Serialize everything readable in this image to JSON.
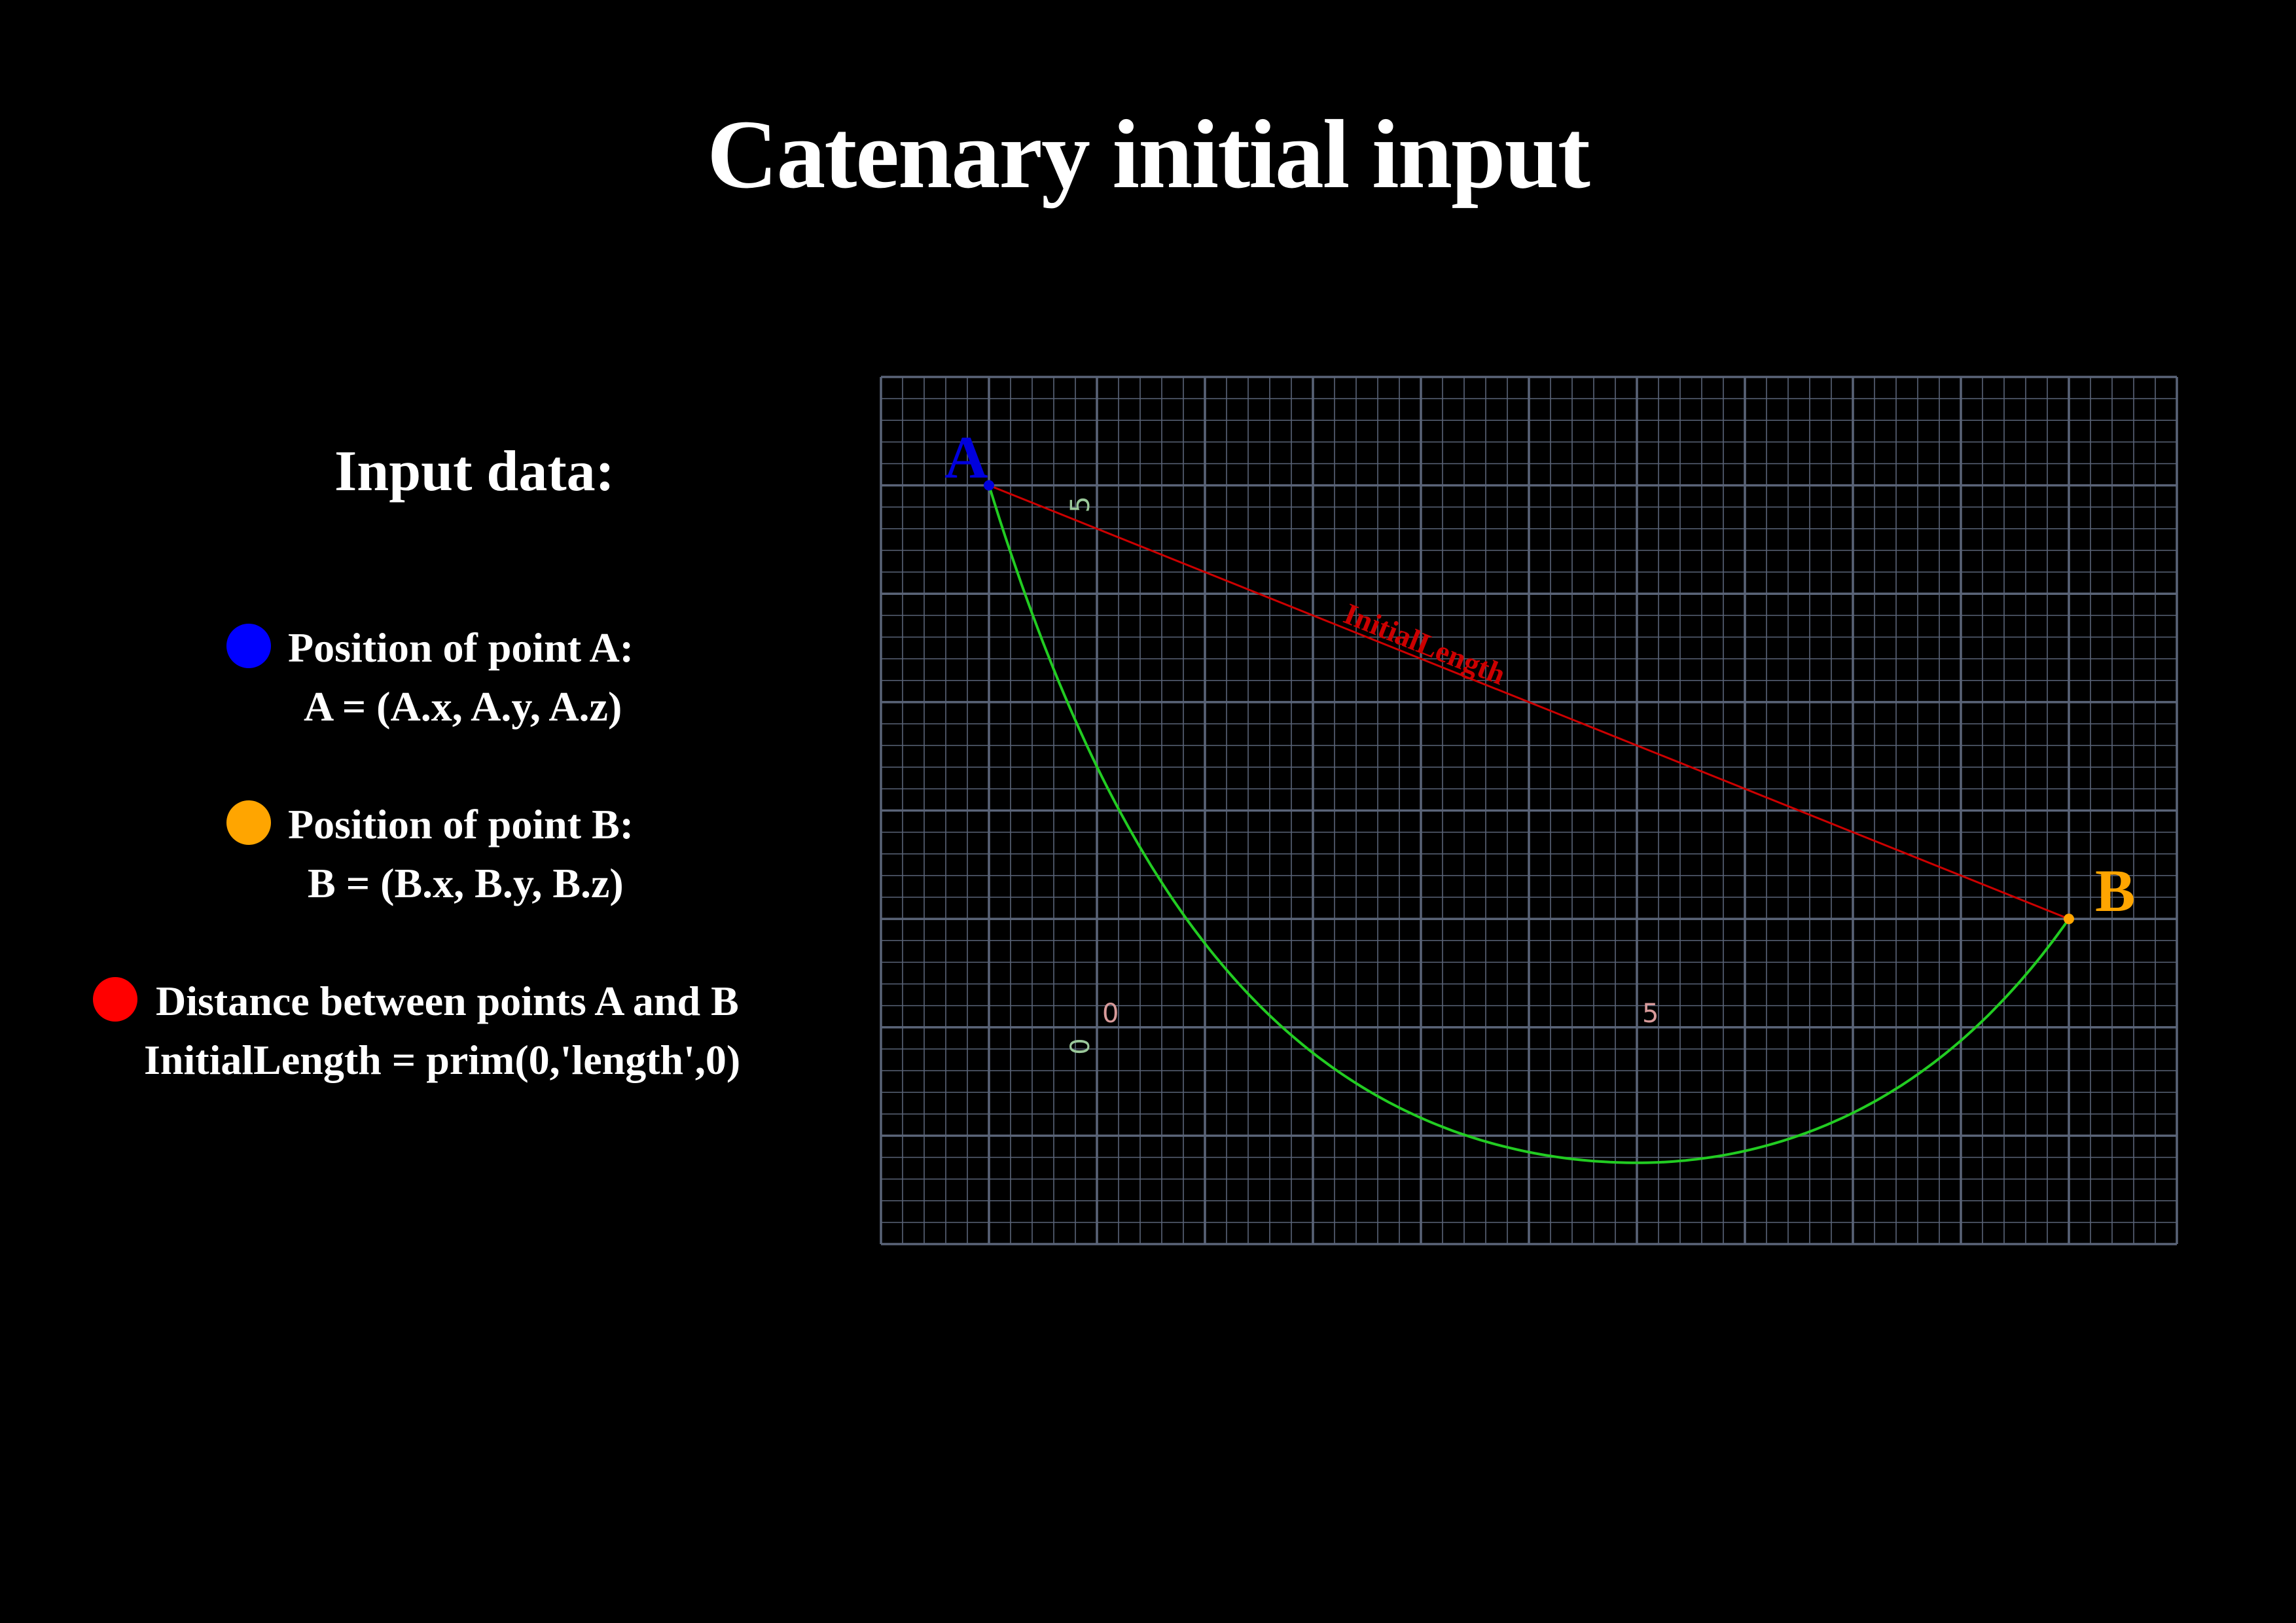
{
  "title": "Catenary initial input",
  "input_heading": "Input data:",
  "items": [
    {
      "line1": "Position of point A:",
      "line2": "A = (A.x, A.y, A.z)",
      "color": "#0000ff"
    },
    {
      "line1": "Position of point B:",
      "line2": "B = (B.x, B.y, B.z)",
      "color": "#ffa500"
    },
    {
      "line1": "Distance between points A and B",
      "line2": "InitialLength = prim(0,'length',0)",
      "color": "#ff0000"
    }
  ],
  "diagram": {
    "point_a": {
      "label": "A",
      "x": -1,
      "y": 5,
      "color": "#0000dd"
    },
    "point_b": {
      "label": "B",
      "x": 9,
      "y": 1,
      "color": "#ffa500"
    },
    "initial_length_label": "InitialLength",
    "x_axis_label_0": "0",
    "x_axis_label_5": "5",
    "y_axis_label_0": "0",
    "y_axis_label_5": "5",
    "x_range": [
      -2,
      10
    ],
    "y_range": [
      -2,
      6
    ],
    "curve_min_y": -1.25,
    "curve_min_x": 5,
    "colors": {
      "curve": "#22cc22",
      "line": "#cc0000",
      "grid": "#5a6478"
    }
  }
}
